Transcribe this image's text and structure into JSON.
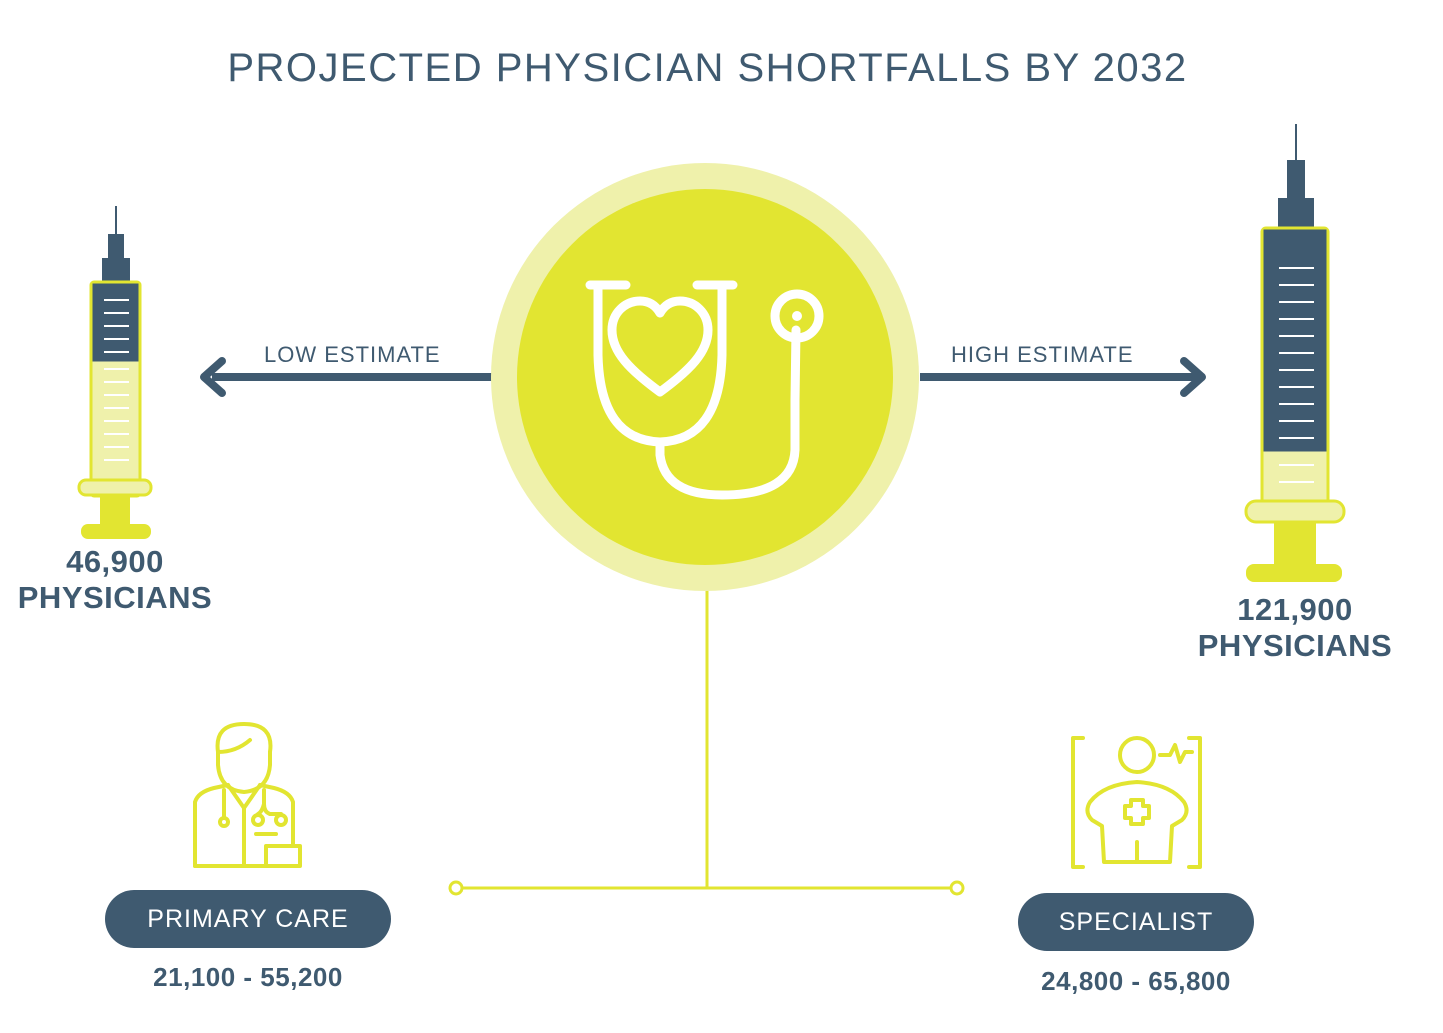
{
  "title": "PROJECTED PHYSICIAN SHORTFALLS BY 2032",
  "low_estimate": {
    "label": "LOW ESTIMATE",
    "value": "46,900",
    "unit": "PHYSICIANS",
    "syringe_fill_fraction": 0.4
  },
  "high_estimate": {
    "label": "HIGH ESTIMATE",
    "value": "121,900",
    "unit": "PHYSICIANS",
    "syringe_fill_fraction": 0.8
  },
  "categories": [
    {
      "name": "PRIMARY CARE",
      "range": "21,100 - 55,200",
      "icon": "doctor-icon"
    },
    {
      "name": "SPECIALIST",
      "range": "24,800 - 65,800",
      "icon": "patient-monitor-icon"
    }
  ],
  "center_icon": "stethoscope-heart-icon",
  "colors": {
    "navy": "#3f5a70",
    "lime": "#e2e531",
    "lime_light": "#eff1ab",
    "white": "#ffffff"
  }
}
